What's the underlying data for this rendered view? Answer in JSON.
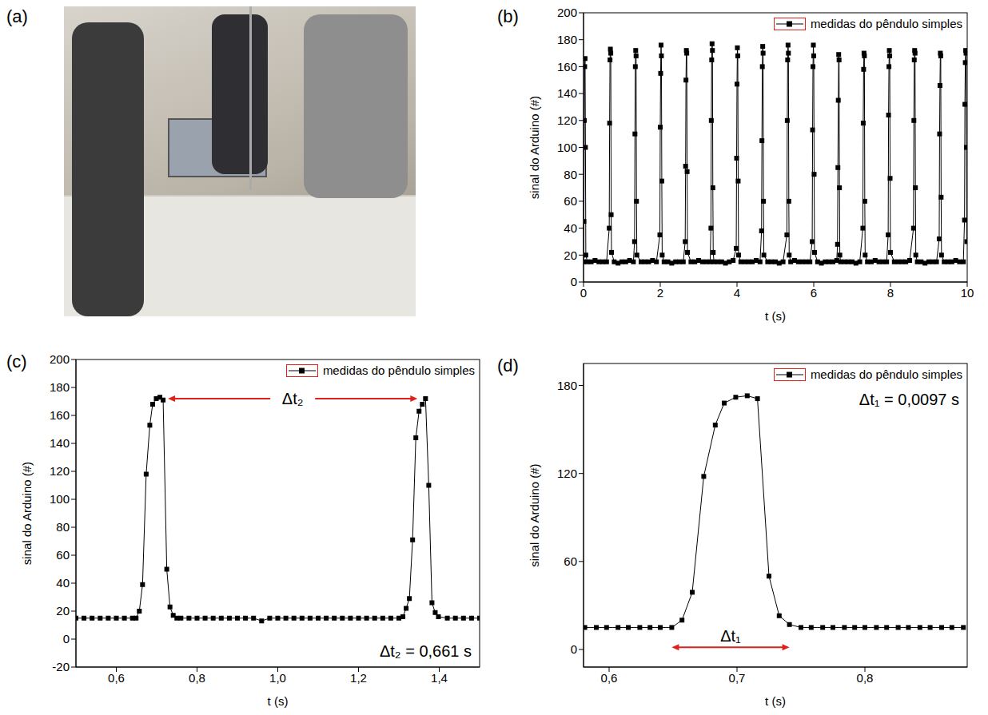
{
  "image_panel": {
    "label": "(a)"
  },
  "chart_data": [
    {
      "panel": "(b)",
      "type": "line",
      "x_label": "t (s)",
      "y_label": "sinal do Arduino (#)",
      "legend": "top-right",
      "grid": false,
      "xlim": [
        0,
        10
      ],
      "xticks": [
        0,
        2,
        4,
        6,
        8,
        10
      ],
      "ylim": [
        0,
        200
      ],
      "yticks": [
        0,
        20,
        40,
        60,
        80,
        100,
        120,
        140,
        160,
        180,
        200
      ],
      "x": [
        0,
        0.01,
        0.02,
        0.03,
        0.04,
        0.05,
        0.06,
        0.1,
        0.2,
        0.3,
        0.4,
        0.5,
        0.6,
        0.67,
        0.68,
        0.69,
        0.7,
        0.71,
        0.72,
        0.73,
        0.8,
        0.9,
        1,
        1.1,
        1.2,
        1.3,
        1.33,
        1.34,
        1.35,
        1.36,
        1.37,
        1.38,
        1.39,
        1.5,
        1.6,
        1.7,
        1.8,
        1.9,
        1.99,
        2,
        2.01,
        2.02,
        2.03,
        2.04,
        2.05,
        2.1,
        2.2,
        2.3,
        2.4,
        2.5,
        2.6,
        2.65,
        2.66,
        2.67,
        2.68,
        2.69,
        2.7,
        2.71,
        2.8,
        2.9,
        3,
        3.1,
        3.2,
        3.3,
        3.32,
        3.33,
        3.34,
        3.35,
        3.36,
        3.37,
        3.38,
        3.4,
        3.5,
        3.6,
        3.7,
        3.8,
        3.9,
        3.98,
        3.99,
        4,
        4.01,
        4.02,
        4.03,
        4.04,
        4.1,
        4.2,
        4.3,
        4.4,
        4.5,
        4.6,
        4.64,
        4.65,
        4.66,
        4.67,
        4.68,
        4.69,
        4.7,
        4.8,
        4.9,
        5,
        5.1,
        5.2,
        5.3,
        5.31,
        5.32,
        5.33,
        5.34,
        5.35,
        5.36,
        5.4,
        5.5,
        5.6,
        5.7,
        5.8,
        5.9,
        5.96,
        5.97,
        5.98,
        5.99,
        6,
        6.01,
        6.02,
        6.1,
        6.2,
        6.3,
        6.4,
        6.5,
        6.6,
        6.62,
        6.63,
        6.64,
        6.65,
        6.66,
        6.67,
        6.68,
        6.7,
        6.8,
        6.9,
        7,
        7.1,
        7.2,
        7.28,
        7.29,
        7.3,
        7.31,
        7.32,
        7.33,
        7.34,
        7.4,
        7.5,
        7.6,
        7.7,
        7.8,
        7.9,
        7.94,
        7.95,
        7.96,
        7.97,
        7.98,
        7.99,
        8,
        8.1,
        8.2,
        8.3,
        8.4,
        8.5,
        8.6,
        8.61,
        8.62,
        8.63,
        8.64,
        8.65,
        8.66,
        8.7,
        8.8,
        8.9,
        9,
        9.1,
        9.2,
        9.27,
        9.28,
        9.29,
        9.3,
        9.31,
        9.32,
        9.33,
        9.4,
        9.5,
        9.6,
        9.7,
        9.8,
        9.9,
        9.93,
        9.94,
        9.95,
        9.96,
        9.97,
        9.98,
        9.99
      ],
      "series": [
        {
          "name": "medidas do pêndulo simples",
          "color": "#000000",
          "marker": "square",
          "line_style": "solid",
          "values": [
            15,
            45,
            120,
            160,
            166,
            100,
            20,
            15,
            15,
            16,
            15,
            15,
            15,
            40,
            118,
            165,
            173,
            170,
            50,
            22,
            15,
            14,
            15,
            15,
            16,
            15,
            30,
            110,
            160,
            172,
            168,
            60,
            20,
            15,
            15,
            15,
            16,
            15,
            35,
            115,
            155,
            176,
            168,
            75,
            20,
            15,
            15,
            14,
            15,
            15,
            15,
            30,
            86,
            150,
            172,
            170,
            82,
            22,
            15,
            15,
            16,
            15,
            15,
            15,
            40,
            120,
            165,
            177,
            172,
            70,
            22,
            15,
            15,
            15,
            14,
            15,
            16,
            25,
            92,
            147,
            174,
            168,
            75,
            20,
            15,
            15,
            15,
            15,
            16,
            15,
            38,
            105,
            160,
            175,
            170,
            60,
            20,
            15,
            15,
            15,
            14,
            15,
            35,
            120,
            165,
            176,
            170,
            60,
            20,
            15,
            16,
            15,
            15,
            15,
            15,
            30,
            113,
            160,
            176,
            168,
            80,
            22,
            15,
            14,
            15,
            15,
            15,
            16,
            28,
            85,
            135,
            169,
            165,
            70,
            20,
            15,
            15,
            15,
            15,
            14,
            15,
            40,
            118,
            158,
            170,
            168,
            60,
            20,
            15,
            15,
            16,
            15,
            15,
            15,
            35,
            124,
            160,
            172,
            168,
            77,
            22,
            15,
            15,
            15,
            15,
            16,
            40,
            120,
            165,
            172,
            170,
            70,
            20,
            15,
            15,
            14,
            15,
            15,
            15,
            32,
            110,
            146,
            170,
            168,
            63,
            20,
            15,
            15,
            15,
            16,
            15,
            15,
            46,
            132,
            163,
            172,
            170,
            100,
            30
          ]
        }
      ]
    },
    {
      "panel": "(c)",
      "type": "line",
      "x_label": "t (s)",
      "y_label": "sinal do Arduino (#)",
      "legend": "top-right",
      "grid": false,
      "interval_label": "Δt₂",
      "note": "Δt₂ = 0,661 s",
      "xlim": [
        0.5,
        1.5
      ],
      "xticks": [
        {
          "value": 0.6,
          "label": "0,6"
        },
        {
          "value": 0.8,
          "label": "0,8"
        },
        {
          "value": 1.0,
          "label": "1,0"
        },
        {
          "value": 1.2,
          "label": "1,2"
        },
        {
          "value": 1.4,
          "label": "1,4"
        }
      ],
      "ylim": [
        -20,
        200
      ],
      "yticks": [
        -20,
        0,
        20,
        40,
        60,
        80,
        100,
        120,
        140,
        160,
        180,
        200
      ],
      "x": [
        0.5,
        0.52,
        0.54,
        0.56,
        0.58,
        0.6,
        0.62,
        0.64,
        0.649,
        0.657,
        0.665,
        0.674,
        0.683,
        0.69,
        0.699,
        0.708,
        0.716,
        0.725,
        0.733,
        0.741,
        0.75,
        0.76,
        0.78,
        0.8,
        0.82,
        0.84,
        0.86,
        0.88,
        0.9,
        0.92,
        0.94,
        0.96,
        0.98,
        1,
        1.02,
        1.04,
        1.06,
        1.08,
        1.1,
        1.12,
        1.14,
        1.16,
        1.18,
        1.2,
        1.22,
        1.24,
        1.26,
        1.28,
        1.3,
        1.31,
        1.318,
        1.326,
        1.334,
        1.342,
        1.35,
        1.358,
        1.366,
        1.374,
        1.382,
        1.39,
        1.398,
        1.42,
        1.44,
        1.46,
        1.48,
        1.5
      ],
      "series": [
        {
          "name": "medidas do pêndulo simples",
          "color": "#000000",
          "marker": "square",
          "line_style": "solid",
          "values": [
            15,
            15,
            15,
            15,
            15,
            15,
            15,
            15,
            15,
            20,
            39,
            118,
            153,
            168,
            172,
            173,
            171,
            50,
            23,
            17,
            15,
            15,
            15,
            15,
            15,
            15,
            15,
            15,
            15,
            15,
            15,
            13,
            15,
            15,
            15,
            15,
            15,
            15,
            15,
            15,
            15,
            15,
            15,
            15,
            15,
            15,
            15,
            15,
            15,
            16,
            22,
            29,
            71,
            144,
            163,
            168,
            172,
            110,
            26,
            19,
            16,
            15,
            15,
            15,
            15,
            15
          ]
        }
      ]
    },
    {
      "panel": "(d)",
      "type": "line",
      "x_label": "t (s)",
      "y_label": "sinal do Arduino (#)",
      "legend": "top-right",
      "grid": false,
      "width_label": "Δt₁",
      "note": "Δt₁ = 0,0097 s",
      "xlim": [
        0.58,
        0.88
      ],
      "xticks": [
        {
          "value": 0.6,
          "label": "0,6"
        },
        {
          "value": 0.7,
          "label": "0,7"
        },
        {
          "value": 0.8,
          "label": "0,8"
        }
      ],
      "ylim": [
        -12,
        195
      ],
      "yticks": [
        0,
        60,
        120,
        180
      ],
      "x": [
        0.581,
        0.59,
        0.598,
        0.607,
        0.615,
        0.624,
        0.632,
        0.64,
        0.649,
        0.657,
        0.665,
        0.674,
        0.683,
        0.69,
        0.699,
        0.708,
        0.716,
        0.725,
        0.733,
        0.741,
        0.75,
        0.758,
        0.767,
        0.775,
        0.784,
        0.792,
        0.8,
        0.809,
        0.817,
        0.826,
        0.834,
        0.843,
        0.851,
        0.86,
        0.868,
        0.877
      ],
      "series": [
        {
          "name": "medidas do pêndulo simples",
          "color": "#000000",
          "marker": "square",
          "line_style": "solid",
          "values": [
            15,
            15,
            15,
            15,
            15,
            15,
            15,
            15,
            15,
            20,
            39,
            118,
            153,
            168,
            172,
            173,
            171,
            50,
            23,
            17,
            15,
            15,
            15,
            15,
            15,
            15,
            15,
            15,
            15,
            15,
            15,
            15,
            15,
            15,
            15,
            15
          ]
        }
      ]
    }
  ]
}
